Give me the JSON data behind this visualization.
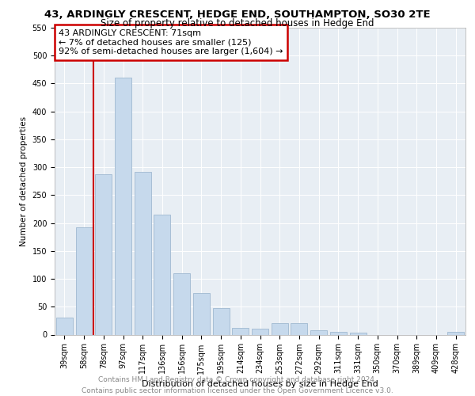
{
  "title": "43, ARDINGLY CRESCENT, HEDGE END, SOUTHAMPTON, SO30 2TE",
  "subtitle": "Size of property relative to detached houses in Hedge End",
  "xlabel": "Distribution of detached houses by size in Hedge End",
  "ylabel": "Number of detached properties",
  "categories": [
    "39sqm",
    "58sqm",
    "78sqm",
    "97sqm",
    "117sqm",
    "136sqm",
    "156sqm",
    "175sqm",
    "195sqm",
    "214sqm",
    "234sqm",
    "253sqm",
    "272sqm",
    "292sqm",
    "311sqm",
    "331sqm",
    "350sqm",
    "370sqm",
    "389sqm",
    "409sqm",
    "428sqm"
  ],
  "values": [
    30,
    192,
    288,
    460,
    292,
    215,
    110,
    75,
    48,
    12,
    10,
    20,
    20,
    8,
    5,
    3,
    0,
    0,
    0,
    0,
    5
  ],
  "bar_color": "#c6d9ec",
  "bar_edge_color": "#a0b8d0",
  "annotation_line1": "43 ARDINGLY CRESCENT: 71sqm",
  "annotation_line2": "← 7% of detached houses are smaller (125)",
  "annotation_line3": "92% of semi-detached houses are larger (1,604) →",
  "annotation_box_facecolor": "#ffffff",
  "annotation_box_edgecolor": "#cc0000",
  "property_line_x": 1.5,
  "property_line_color": "#cc0000",
  "ylim": [
    0,
    550
  ],
  "yticks": [
    0,
    50,
    100,
    150,
    200,
    250,
    300,
    350,
    400,
    450,
    500,
    550
  ],
  "footer_line1": "Contains HM Land Registry data © Crown copyright and database right 2024.",
  "footer_line2": "Contains public sector information licensed under the Open Government Licence v3.0.",
  "background_color": "#ffffff",
  "plot_bg_color": "#e8eef4",
  "grid_color": "#ffffff",
  "title_fontsize": 9.5,
  "subtitle_fontsize": 8.5,
  "xlabel_fontsize": 8.0,
  "ylabel_fontsize": 7.5,
  "tick_fontsize": 7.0,
  "annotation_fontsize": 8.0,
  "footer_fontsize": 6.5
}
